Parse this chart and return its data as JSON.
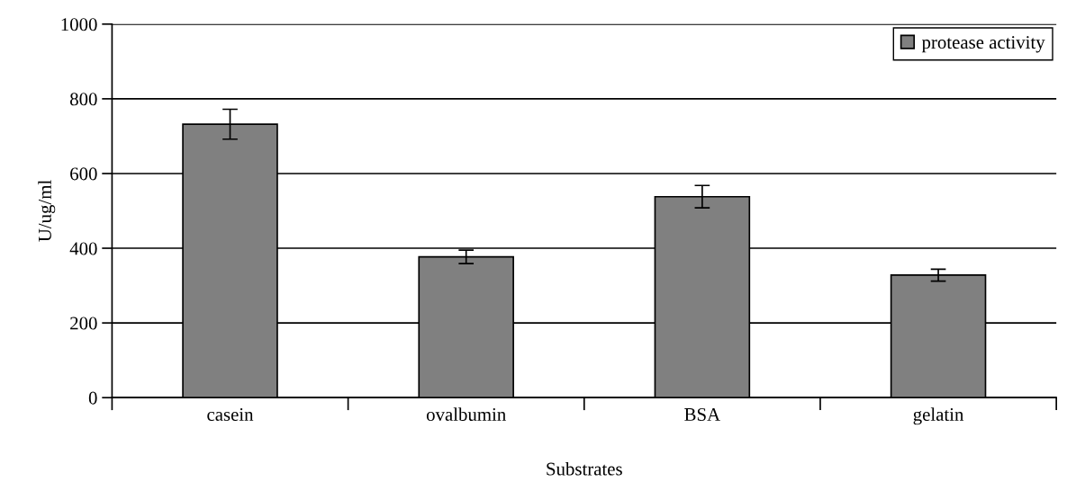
{
  "chart_data": {
    "type": "bar",
    "xlabel": "Substrates",
    "ylabel": "U/ug/ml",
    "categories": [
      "casein",
      "ovalbumin",
      "BSA",
      "gelatin"
    ],
    "series": [
      {
        "name": "protease activity",
        "color": "#808080",
        "values": [
          732,
          377,
          538,
          328
        ],
        "errors": [
          40,
          18,
          30,
          16
        ]
      }
    ],
    "ylim": [
      0,
      1000
    ],
    "yticks": [
      0,
      200,
      400,
      600,
      800,
      1000
    ],
    "grid": "y",
    "legend": "top right"
  }
}
